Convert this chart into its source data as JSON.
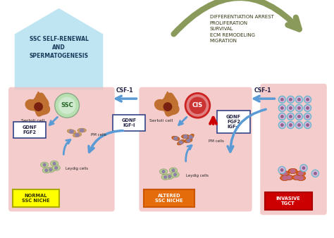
{
  "bg_color": "#ffffff",
  "arrow_color_blue": "#5b9bd5",
  "arrow_color_green": "#8a9a5b",
  "box1_color": "#ffff00",
  "box2_color": "#e46c0a",
  "box3_color": "#cc0000",
  "niche_bg": "#f2c0c0",
  "label1": "NORMAL\nSSC NICHE",
  "label2": "ALTERED\nSSC NICHE",
  "label3": "INVASIVE\nTGCT",
  "top_left_text": "SSC SELF-RENEWAL\nAND\nSPERMATOGENESIS",
  "top_right_text": "DIFFERENTIATION ARREST\nPROLIFERATION\nSURVIVAL\nECM REMODELING\nMIGRATION",
  "csf1_text": "CSF-1",
  "gdnf_fgf2": "GDNF\nFGF2",
  "gdnf_igf": "GDNF\nIGF-I",
  "gdnf_fgf2_igf": "GDNF\nFGF2\nIGF-I",
  "sertoli": "Sertoli cell",
  "pm_cells": "PM cells",
  "leydig_cells": "Leydig cells",
  "ssc_label": "SSC",
  "cis_label": "CIS",
  "house_color": "#aaddf0",
  "sertoli_color": "#c07030",
  "sertoli_dark": "#8b3a10",
  "leydig_color": "#b8d090",
  "leydig_nuc": "#9080a8",
  "pm_color_normal": "#d4a060",
  "pm_color_altered": "#d06820",
  "tumor_ring": "#70b8d0",
  "tumor_fill": "#d8b8d8",
  "tumor_core": "#906090",
  "orange_cell": "#d86020"
}
